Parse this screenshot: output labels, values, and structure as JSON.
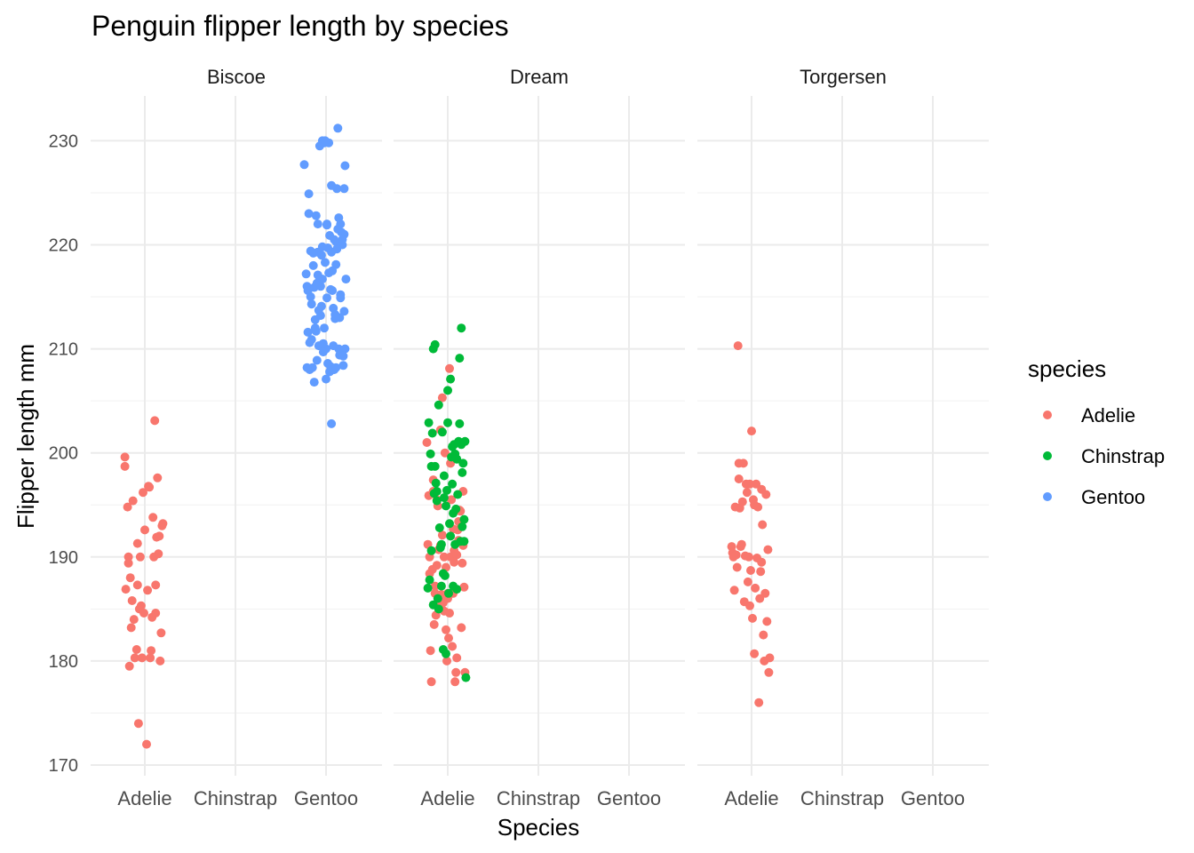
{
  "chart_data": {
    "type": "scatter",
    "title": "Penguin flipper length by species",
    "xlabel": "Species",
    "ylabel": "Flipper length mm",
    "categories": [
      "Adelie",
      "Chinstrap",
      "Gentoo"
    ],
    "ylim": [
      169,
      233
    ],
    "yticks": [
      170,
      180,
      190,
      200,
      210,
      220,
      230
    ],
    "grid": true,
    "facet_var": "island",
    "facets": [
      "Biscoe",
      "Dream",
      "Torgersen"
    ],
    "legend": {
      "title": "species",
      "position": "right",
      "entries": [
        "Adelie",
        "Chinstrap",
        "Gentoo"
      ]
    },
    "colors": {
      "Adelie": "#F8766D",
      "Chinstrap": "#00BA38",
      "Gentoo": "#619CFF"
    },
    "panels": [
      {
        "facet": "Biscoe",
        "series": [
          {
            "name": "Adelie",
            "x": [
              0.78,
              0.78,
              0.82,
              0.82,
              0.84,
              0.86,
              0.87,
              0.92,
              0.92,
              0.96,
              0.98,
              1.04,
              1.05,
              1.06,
              1.08,
              1.12,
              1.12,
              1.15,
              1.16,
              1.18,
              0.79,
              0.81,
              0.83,
              0.85,
              0.91,
              0.95,
              1.02,
              1.07,
              1.1,
              1.13,
              1.17,
              1.2,
              0.93,
              0.97,
              1.03,
              1.09,
              1.14,
              1.19,
              0.88,
              1.0,
              1.11,
              0.94,
              0.99,
              0.89
            ],
            "y": [
              199.6,
              198.7,
              190.0,
              189.4,
              188.0,
              185.8,
              195.4,
              187.3,
              191.3,
              185.3,
              196.2,
              196.8,
              196.7,
              180.3,
              184.2,
              187.3,
              184.6,
              190.3,
              192.0,
              182.7,
              186.9,
              194.8,
              179.5,
              183.2,
              181.1,
              190.0,
              172.0,
              181.0,
              190.0,
              191.9,
              180.0,
              193.2,
              174.0,
              180.3,
              186.8,
              193.8,
              197.6,
              193.0,
              184.0,
              192.6,
              203.1,
              185.0,
              184.6,
              180.3
            ]
          },
          {
            "name": "Gentoo",
            "x": [
              2.76,
              2.81,
              2.81,
              2.91,
              2.89,
              3.01,
              2.91,
              2.96,
              3.06,
              3.11,
              3.11,
              3.16,
              3.2,
              3.12,
              3.18,
              3.06,
              2.98,
              2.96,
              2.93,
              3.03,
              2.86,
              2.99,
              3.13,
              3.21,
              3.2,
              2.94,
              2.79,
              2.83,
              2.87,
              2.95,
              3.07,
              3.16,
              3.22,
              3.08,
              3.01,
              3.1,
              2.88,
              2.98,
              3.15,
              2.8,
              2.84,
              2.92,
              2.97,
              3.02,
              3.05,
              3.19,
              2.82,
              2.85,
              2.9,
              3.0,
              3.04,
              3.09,
              3.14,
              3.17,
              3.21,
              2.78,
              2.86,
              2.93,
              2.99,
              3.07,
              3.12,
              3.18,
              2.8,
              2.9,
              2.96,
              3.03,
              3.1,
              3.16,
              2.84,
              2.94,
              3.05,
              3.2,
              2.88,
              2.97,
              3.08,
              3.15,
              2.82,
              2.92,
              3.0,
              3.11,
              3.19,
              2.87,
              2.95,
              3.04,
              3.13,
              2.79,
              2.89,
              3.02,
              3.09,
              3.17,
              2.83,
              2.91,
              3.01,
              3.14,
              3.06
            ],
            "y": [
              227.7,
              224.9,
              223.0,
              222.0,
              222.8,
              222.0,
              219.3,
              219.8,
              219.3,
              220.3,
              218.1,
              222.0,
              221.0,
              225.4,
              220.0,
              225.7,
              229.8,
              230.0,
              229.5,
              229.8,
              218.0,
              230.0,
              231.2,
              227.6,
              225.4,
              216.0,
              216.0,
              215.0,
              215.9,
              214.1,
              215.6,
              215.2,
              216.7,
              213.9,
              214.9,
              212.9,
              212.8,
              212.0,
              213.0,
              211.6,
              210.9,
              210.3,
              210.5,
              208.6,
              208.3,
              208.4,
              208.0,
              208.2,
              208.9,
              210.0,
              207.8,
              208.0,
              210.0,
              209.8,
              210.0,
              217.2,
              219.2,
              216.8,
              218.3,
              217.5,
              219.6,
              220.5,
              215.6,
              216.3,
              216.7,
              217.3,
              213.3,
              214.9,
              214.3,
              213.2,
              215.7,
              213.6,
              212.0,
              209.7,
              210.3,
              209.4,
              210.6,
              213.7,
              207.1,
              208.2,
              209.3,
              206.8,
              219.0,
              220.9,
              221.5,
              208.2,
              211.7,
              219.7,
              220.5,
              221.2,
              219.4,
              217.1,
              221.9,
              222.6,
              202.8
            ]
          }
        ]
      },
      {
        "facet": "Dream",
        "series": [
          {
            "name": "Adelie",
            "x": [
              0.77,
              0.8,
              0.81,
              0.83,
              0.84,
              0.86,
              0.87,
              0.88,
              0.89,
              0.91,
              0.92,
              0.93,
              0.94,
              0.96,
              0.97,
              0.99,
              1.0,
              1.02,
              1.03,
              1.04,
              1.05,
              1.06,
              1.07,
              1.08,
              1.1,
              1.12,
              1.14,
              1.16,
              1.18,
              1.19,
              0.78,
              0.82,
              0.85,
              0.9,
              0.95,
              0.98,
              1.01,
              1.09,
              1.11,
              1.13,
              1.15,
              1.17,
              0.79,
              0.88,
              0.96,
              1.0,
              1.06,
              1.12,
              0.84,
              0.92,
              1.03,
              1.17,
              0.86,
              0.94,
              1.02,
              1.1,
              0.8,
              0.98,
              1.07
            ],
            "y": [
              201.0,
              190.0,
              181.0,
              188.8,
              196.3,
              187.2,
              184.4,
              195.5,
              194.9,
              185.2,
              202.2,
              186.4,
              205.3,
              190.0,
              200.0,
              180.0,
              186.0,
              208.1,
              190.0,
              195.5,
              181.4,
              186.5,
              189.5,
              178.0,
              180.3,
              191.6,
              194.4,
              189.4,
              187.1,
              178.9,
              191.2,
              178.0,
              183.5,
              190.7,
              185.6,
              189.0,
              182.2,
              178.9,
              192.6,
              194.5,
              183.2,
              191.1,
              195.9,
              189.2,
              184.8,
              186.5,
              192.7,
              193.4,
              197.4,
              191.1,
              199.0,
              196.3,
              186.5,
              192.1,
              184.6,
              190.2,
              188.4,
              183.0,
              190.6
            ]
          },
          {
            "name": "Chinstrap",
            "x": [
              0.78,
              0.79,
              0.81,
              0.82,
              0.83,
              0.84,
              0.86,
              0.87,
              0.89,
              0.9,
              0.92,
              0.93,
              0.95,
              0.97,
              0.98,
              1.0,
              1.01,
              1.03,
              1.05,
              1.06,
              1.08,
              1.1,
              1.11,
              1.13,
              1.15,
              1.17,
              1.18,
              0.8,
              0.85,
              0.88,
              0.91,
              0.94,
              0.96,
              0.99,
              1.02,
              1.04,
              1.07,
              1.09,
              1.12,
              1.14,
              1.16,
              1.19,
              0.82,
              0.86,
              0.9,
              0.95,
              1.0,
              1.05,
              1.1,
              1.15,
              1.2,
              0.84,
              0.93,
              1.03,
              1.13,
              0.88,
              0.98,
              1.08,
              1.18,
              0.96,
              1.06,
              1.16
            ],
            "y": [
              187.0,
              202.9,
              199.9,
              198.7,
              201.9,
              210.0,
              210.4,
              197.1,
              186.0,
              204.6,
              190.9,
              187.2,
              181.1,
              188.2,
              180.7,
              202.9,
              186.5,
              192.0,
              197.0,
              194.2,
              191.2,
              199.4,
              196.0,
              202.8,
              200.8,
              199.0,
              191.5,
              187.8,
              196.1,
              195.4,
              192.8,
              202.0,
              197.8,
              196.4,
              193.2,
              199.6,
              200.8,
              194.6,
              201.1,
              191.5,
              198.1,
              201.1,
              190.6,
              198.7,
              185.0,
              188.4,
              206.0,
              200.6,
              186.9,
              212.0,
              178.4,
              185.4,
              191.2,
              207.1,
              209.1,
              196.3,
              194.9,
              199.9,
              193.6,
              195.7,
              187.2,
              192.9
            ]
          }
        ]
      },
      {
        "facet": "Torgersen",
        "series": [
          {
            "name": "Adelie",
            "x": [
              0.78,
              0.79,
              0.81,
              0.82,
              0.83,
              0.85,
              0.86,
              0.88,
              0.9,
              0.91,
              0.93,
              0.95,
              0.97,
              0.98,
              1.0,
              1.02,
              1.03,
              1.05,
              1.06,
              1.08,
              1.1,
              1.11,
              1.13,
              1.15,
              1.17,
              1.19,
              1.2,
              0.8,
              0.84,
              0.87,
              0.89,
              0.94,
              0.99,
              1.01,
              1.04,
              1.09,
              1.12,
              1.16,
              1.18,
              0.92,
              0.96,
              1.07,
              1.14,
              0.86,
              0.98,
              1.03,
              1.11
            ],
            "y": [
              191.0,
              190.4,
              186.8,
              194.8,
              190.2,
              210.3,
              199.0,
              191.0,
              195.3,
              199.0,
              190.1,
              196.2,
              190.0,
              197.0,
              202.1,
              195.5,
              180.7,
              197.0,
              189.9,
              176.0,
              188.6,
              189.5,
              182.5,
              186.5,
              183.8,
              178.9,
              180.3,
              190.0,
              189.0,
              194.7,
              191.2,
              197.0,
              188.7,
              184.1,
              187.0,
              186.0,
              193.1,
              196.0,
              190.7,
              185.7,
              187.6,
              194.8,
              180.0,
              197.5,
              185.3,
              195.0,
              196.5
            ]
          }
        ]
      }
    ]
  }
}
